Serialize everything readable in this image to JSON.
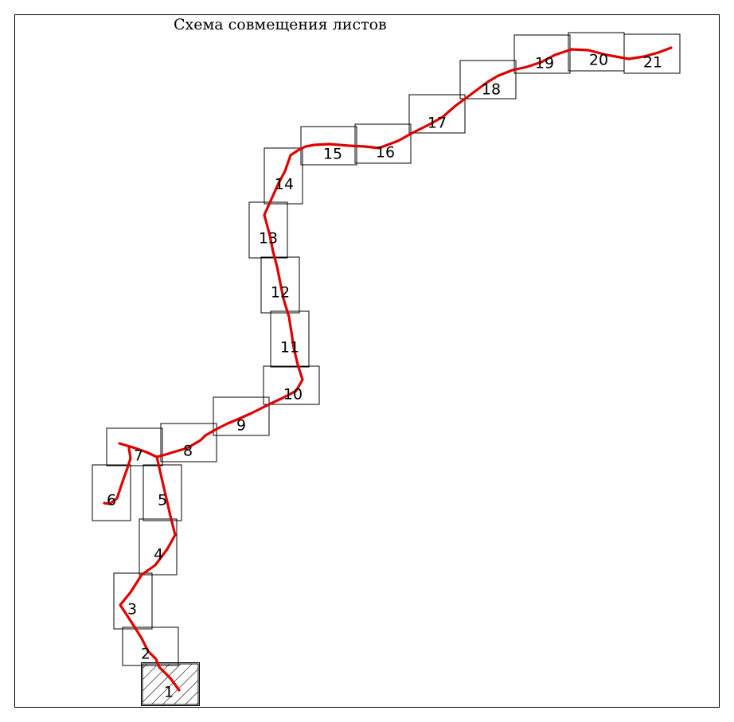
{
  "title": "Схема совмещения листов",
  "colors": {
    "route": "#e00000",
    "frame": "#000000"
  },
  "sheets": [
    {
      "label": "1",
      "highlighted": true
    },
    {
      "label": "2"
    },
    {
      "label": "3"
    },
    {
      "label": "4"
    },
    {
      "label": "5"
    },
    {
      "label": "6"
    },
    {
      "label": "7"
    },
    {
      "label": "8"
    },
    {
      "label": "9"
    },
    {
      "label": "10"
    },
    {
      "label": "11"
    },
    {
      "label": "12"
    },
    {
      "label": "13"
    },
    {
      "label": "14"
    },
    {
      "label": "15"
    },
    {
      "label": "16"
    },
    {
      "label": "17"
    },
    {
      "label": "18"
    },
    {
      "label": "19"
    },
    {
      "label": "20"
    },
    {
      "label": "21"
    }
  ]
}
